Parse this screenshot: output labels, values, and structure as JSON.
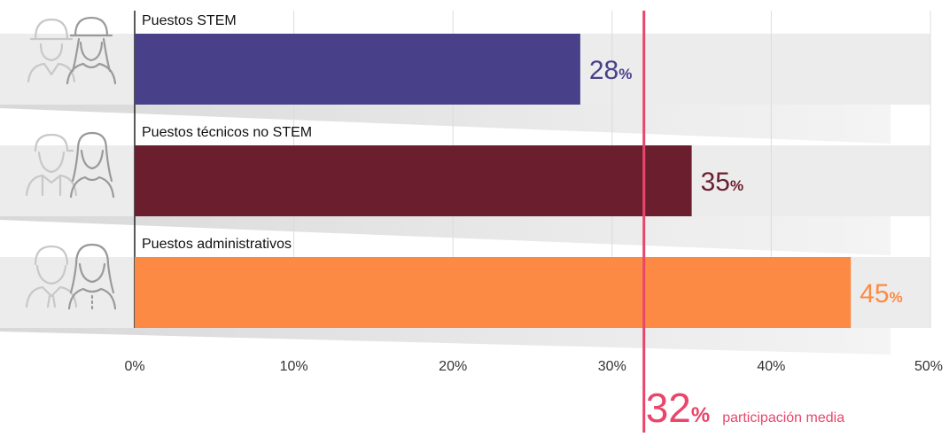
{
  "chart_data": {
    "type": "bar",
    "orientation": "horizontal",
    "categories": [
      "Puestos STEM",
      "Puestos técnicos no STEM",
      "Puestos administrativos"
    ],
    "values": [
      28,
      35,
      45
    ],
    "value_labels": [
      "28",
      "35",
      "45"
    ],
    "value_suffix": "%",
    "xlim": [
      0,
      50
    ],
    "xticks": [
      "0%",
      "10%",
      "20%",
      "30%",
      "40%",
      "50%"
    ],
    "xtick_values": [
      0,
      10,
      20,
      30,
      40,
      50
    ],
    "grid": true,
    "colors": [
      "#48418a",
      "#6b1f2e",
      "#fd8a44"
    ],
    "reference_line": {
      "value": 32,
      "label_value": "32",
      "label_suffix": "%",
      "label_text": "participación media",
      "color": "#e8466b"
    },
    "icons": [
      "worker-hardhat-pair-icon",
      "worker-cap-pair-icon",
      "office-worker-pair-icon"
    ]
  }
}
